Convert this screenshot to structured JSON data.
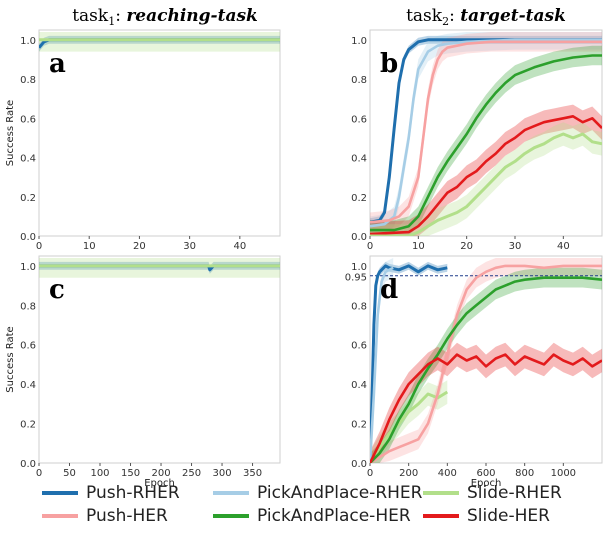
{
  "titles": {
    "left": {
      "prefix": "task",
      "sub": "1",
      "sep": ": ",
      "name": "reaching-task"
    },
    "right": {
      "prefix": "task",
      "sub": "2",
      "sep": ": ",
      "name": "target-task"
    }
  },
  "colors": {
    "Push-RHER": "#1f6fae",
    "PickAndPlace-RHER": "#a6cde6",
    "Slide-RHER": "#b2df8a",
    "Push-HER": "#f7a1a1",
    "PickAndPlace-HER": "#2ca02c",
    "Slide-HER": "#e31a1c"
  },
  "legend": [
    {
      "name": "Push-RHER",
      "label": "Push-RHER"
    },
    {
      "name": "PickAndPlace-RHER",
      "label": "PickAndPlace-RHER"
    },
    {
      "name": "Slide-RHER",
      "label": "Slide-RHER"
    },
    {
      "name": "Push-HER",
      "label": "Push-HER"
    },
    {
      "name": "PickAndPlace-HER",
      "label": "PickAndPlace-HER"
    },
    {
      "name": "Slide-HER",
      "label": "Slide-HER"
    }
  ],
  "chart_data": [
    {
      "id": "a",
      "letter": "a",
      "type": "line",
      "xlabel": "",
      "ylabel": "Success Rate",
      "xlim": [
        0,
        48
      ],
      "ylim": [
        0,
        1.05
      ],
      "xticks": [
        "0",
        "10",
        "20",
        "30",
        "40"
      ],
      "xtick_values": [
        0,
        10,
        20,
        30,
        40
      ],
      "yticks": [
        "0.0",
        "0.2",
        "0.4",
        "0.6",
        "0.8",
        "1.0"
      ],
      "ytick_values": [
        0,
        0.2,
        0.4,
        0.6,
        0.8,
        1.0
      ],
      "hline": null,
      "series": [
        {
          "key": "Push-RHER",
          "x": [
            0,
            1,
            2,
            4,
            48
          ],
          "y": [
            0.96,
            0.99,
            1.0,
            1.0,
            1.0
          ]
        },
        {
          "key": "Slide-RHER",
          "x": [
            0,
            48
          ],
          "y": [
            1.0,
            1.0
          ]
        }
      ]
    },
    {
      "id": "b",
      "letter": "b",
      "type": "line",
      "xlabel": "",
      "ylabel": "",
      "xlim": [
        0,
        48
      ],
      "ylim": [
        0,
        1.05
      ],
      "xticks": [
        "0",
        "10",
        "20",
        "30",
        "40"
      ],
      "xtick_values": [
        0,
        10,
        20,
        30,
        40
      ],
      "yticks": [
        "0.0",
        "0.2",
        "0.4",
        "0.6",
        "0.8",
        "1.0"
      ],
      "ytick_values": [
        0,
        0.2,
        0.4,
        0.6,
        0.8,
        1.0
      ],
      "hline": null,
      "series": [
        {
          "key": "Push-RHER",
          "x": [
            0,
            2,
            3,
            4,
            5,
            6,
            7,
            8,
            9,
            10,
            12,
            15,
            20,
            48
          ],
          "y": [
            0.07,
            0.08,
            0.12,
            0.3,
            0.55,
            0.78,
            0.9,
            0.95,
            0.97,
            0.99,
            1.0,
            1.0,
            1.0,
            1.0
          ]
        },
        {
          "key": "PickAndPlace-RHER",
          "x": [
            0,
            3,
            5,
            6,
            7,
            8,
            9,
            10,
            12,
            14,
            16,
            20,
            30,
            48
          ],
          "y": [
            0.05,
            0.06,
            0.1,
            0.2,
            0.35,
            0.5,
            0.7,
            0.85,
            0.94,
            0.97,
            0.98,
            0.99,
            1.0,
            1.0
          ]
        },
        {
          "key": "Push-HER",
          "x": [
            0,
            4,
            6,
            8,
            10,
            11,
            12,
            13,
            14,
            15,
            16,
            18,
            20,
            25,
            48
          ],
          "y": [
            0.07,
            0.08,
            0.1,
            0.15,
            0.3,
            0.5,
            0.7,
            0.82,
            0.9,
            0.94,
            0.96,
            0.97,
            0.98,
            0.99,
            0.99
          ]
        },
        {
          "key": "PickAndPlace-HER",
          "x": [
            0,
            5,
            8,
            10,
            12,
            14,
            16,
            18,
            20,
            22,
            24,
            26,
            28,
            30,
            34,
            38,
            42,
            46,
            48
          ],
          "y": [
            0.03,
            0.03,
            0.05,
            0.1,
            0.2,
            0.3,
            0.38,
            0.45,
            0.52,
            0.6,
            0.67,
            0.73,
            0.78,
            0.82,
            0.86,
            0.89,
            0.91,
            0.92,
            0.92
          ]
        },
        {
          "key": "Slide-HER",
          "x": [
            0,
            8,
            10,
            12,
            14,
            16,
            18,
            20,
            22,
            24,
            26,
            28,
            30,
            32,
            34,
            36,
            38,
            40,
            42,
            44,
            46,
            48
          ],
          "y": [
            0.01,
            0.02,
            0.05,
            0.1,
            0.16,
            0.22,
            0.25,
            0.3,
            0.33,
            0.38,
            0.42,
            0.47,
            0.5,
            0.54,
            0.56,
            0.58,
            0.59,
            0.6,
            0.61,
            0.58,
            0.6,
            0.55
          ]
        },
        {
          "key": "Slide-RHER",
          "x": [
            0,
            8,
            10,
            12,
            14,
            16,
            18,
            20,
            22,
            24,
            26,
            28,
            30,
            32,
            34,
            36,
            38,
            40,
            42,
            44,
            46,
            48
          ],
          "y": [
            0.0,
            0.0,
            0.02,
            0.05,
            0.08,
            0.1,
            0.12,
            0.15,
            0.2,
            0.25,
            0.3,
            0.35,
            0.38,
            0.42,
            0.45,
            0.47,
            0.5,
            0.52,
            0.5,
            0.52,
            0.48,
            0.47
          ]
        }
      ]
    },
    {
      "id": "c",
      "letter": "c",
      "type": "line",
      "xlabel": "Epoch",
      "ylabel": "Success Rate",
      "xlim": [
        0,
        395
      ],
      "ylim": [
        0,
        1.05
      ],
      "xticks": [
        "0",
        "50",
        "100",
        "150",
        "200",
        "250",
        "300",
        "350"
      ],
      "xtick_values": [
        0,
        50,
        100,
        150,
        200,
        250,
        300,
        350
      ],
      "yticks": [
        "0.0",
        "0.2",
        "0.4",
        "0.6",
        "0.8",
        "1.0"
      ],
      "ytick_values": [
        0,
        0.2,
        0.4,
        0.6,
        0.8,
        1.0
      ],
      "hline": null,
      "series": [
        {
          "key": "Push-RHER",
          "x": [
            0,
            278,
            280,
            283,
            286,
            395
          ],
          "y": [
            1.0,
            1.0,
            0.98,
            0.99,
            1.0,
            1.0
          ]
        },
        {
          "key": "Slide-RHER",
          "x": [
            0,
            395
          ],
          "y": [
            1.0,
            1.0
          ]
        }
      ]
    },
    {
      "id": "d",
      "letter": "d",
      "type": "line",
      "xlabel": "Epoch",
      "ylabel": "",
      "xlim": [
        0,
        1200
      ],
      "ylim": [
        0,
        1.05
      ],
      "xticks": [
        "0",
        "200",
        "400",
        "600",
        "800",
        "1000"
      ],
      "xtick_values": [
        0,
        200,
        400,
        600,
        800,
        1000
      ],
      "yticks": [
        "0.0",
        "0.2",
        "0.4",
        "0.6",
        "0.8",
        "0.95",
        "1.0"
      ],
      "ytick_values": [
        0,
        0.2,
        0.4,
        0.6,
        0.8,
        0.95,
        1.0
      ],
      "hline": 0.95,
      "series": [
        {
          "key": "Push-RHER",
          "x": [
            0,
            10,
            20,
            30,
            40,
            50,
            60,
            80,
            100,
            150,
            200,
            250,
            300,
            350,
            400
          ],
          "y": [
            0.0,
            0.3,
            0.7,
            0.9,
            0.95,
            0.97,
            0.98,
            1.0,
            0.99,
            0.98,
            1.0,
            0.97,
            1.0,
            0.98,
            0.99
          ]
        },
        {
          "key": "PickAndPlace-RHER",
          "x": [
            0,
            20,
            40,
            60,
            80,
            100,
            120
          ],
          "y": [
            0.0,
            0.35,
            0.75,
            0.92,
            0.97,
            0.98,
            0.99
          ]
        },
        {
          "key": "Slide-RHER",
          "x": [
            0,
            50,
            100,
            150,
            200,
            250,
            300,
            350,
            400
          ],
          "y": [
            0.0,
            0.08,
            0.15,
            0.2,
            0.26,
            0.3,
            0.35,
            0.33,
            0.36
          ]
        },
        {
          "key": "Push-HER",
          "x": [
            0,
            50,
            100,
            150,
            200,
            250,
            300,
            350,
            400,
            450,
            500,
            550,
            600,
            650,
            700,
            800,
            900,
            1000,
            1100,
            1200
          ],
          "y": [
            0.0,
            0.03,
            0.06,
            0.08,
            0.1,
            0.12,
            0.2,
            0.35,
            0.55,
            0.75,
            0.88,
            0.94,
            0.97,
            0.99,
            1.0,
            1.0,
            0.99,
            1.0,
            1.0,
            1.0
          ]
        },
        {
          "key": "PickAndPlace-HER",
          "x": [
            0,
            50,
            100,
            150,
            200,
            250,
            300,
            350,
            400,
            450,
            500,
            550,
            600,
            650,
            700,
            750,
            800,
            900,
            1000,
            1100,
            1200
          ],
          "y": [
            0.0,
            0.05,
            0.12,
            0.22,
            0.3,
            0.4,
            0.48,
            0.55,
            0.63,
            0.7,
            0.76,
            0.8,
            0.84,
            0.88,
            0.9,
            0.92,
            0.93,
            0.94,
            0.94,
            0.94,
            0.93
          ]
        },
        {
          "key": "Slide-HER",
          "x": [
            0,
            50,
            100,
            150,
            200,
            250,
            300,
            350,
            400,
            450,
            500,
            550,
            600,
            650,
            700,
            750,
            800,
            850,
            900,
            950,
            1000,
            1050,
            1100,
            1150,
            1200
          ],
          "y": [
            0.0,
            0.1,
            0.22,
            0.32,
            0.4,
            0.45,
            0.5,
            0.53,
            0.5,
            0.55,
            0.52,
            0.54,
            0.49,
            0.53,
            0.55,
            0.5,
            0.54,
            0.52,
            0.5,
            0.55,
            0.52,
            0.5,
            0.53,
            0.49,
            0.52
          ]
        }
      ]
    }
  ]
}
